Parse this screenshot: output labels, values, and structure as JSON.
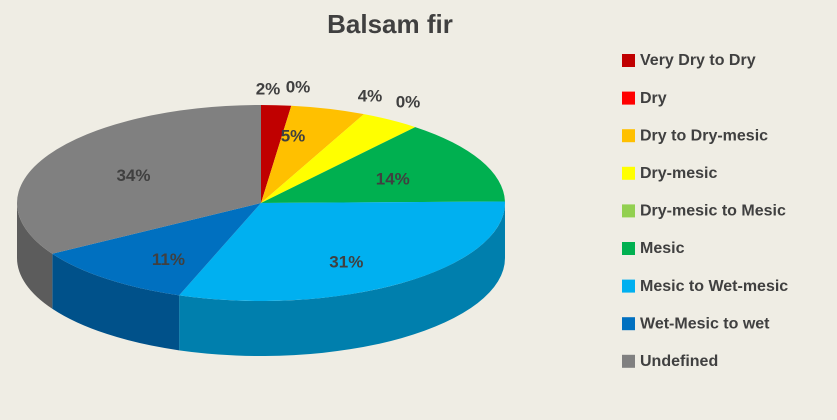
{
  "chart_data": {
    "type": "pie",
    "title": "Balsam fir",
    "categories": [
      "Very Dry to Dry",
      "Dry",
      "Dry to Dry-mesic",
      "Dry-mesic",
      "Dry-mesic to Mesic",
      "Mesic",
      "Mesic to Wet-mesic",
      "Wet-Mesic to wet",
      "Undefined"
    ],
    "values": [
      2,
      0,
      5,
      4,
      0,
      14,
      31,
      11,
      34
    ],
    "value_labels": [
      "2%",
      "0%",
      "5%",
      "4%",
      "0%",
      "14%",
      "31%",
      "11%",
      "34%"
    ],
    "colors": [
      "#c00000",
      "#ff0000",
      "#ffc000",
      "#ffff00",
      "#92d050",
      "#00b050",
      "#00b0f0",
      "#0070c0",
      "#808080"
    ],
    "legend": "right"
  }
}
